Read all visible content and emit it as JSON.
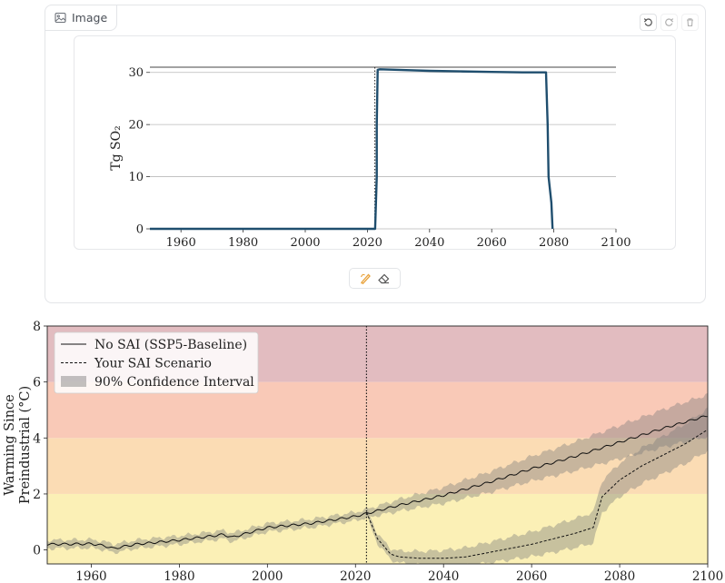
{
  "panel": {
    "label": "Image",
    "icons": {
      "image": "image-icon",
      "undo": "undo-icon",
      "redo": "redo-icon",
      "delete": "trash-icon"
    }
  },
  "pen_tools": {
    "icons": [
      "brush-icon",
      "eraser-icon"
    ],
    "brush_color": "#e8a23b"
  },
  "chart_data": [
    {
      "type": "line",
      "title": "",
      "xlabel": "",
      "ylabel": "Tg SO₂",
      "xlim": [
        1950,
        2100
      ],
      "ylim": [
        0,
        31
      ],
      "xticks": [
        1960,
        1980,
        2000,
        2020,
        2040,
        2060,
        2080,
        2100
      ],
      "yticks": [
        0,
        10,
        20,
        30
      ],
      "grid": "horizontal",
      "series": [
        {
          "color": "#1f4e6e",
          "x": [
            1950,
            2022.5,
            2023.0,
            2023.0,
            2023.3,
            2024,
            2030,
            2040,
            2050,
            2060,
            2070,
            2077.5,
            2078.0,
            2078.3,
            2079.2,
            2079.6
          ],
          "y": [
            0,
            0,
            10,
            20,
            30.5,
            30.6,
            30.5,
            30.3,
            30.2,
            30.1,
            30.0,
            30.0,
            20,
            10,
            5,
            0
          ]
        }
      ],
      "markers": [
        {
          "type": "vline",
          "x": 2022.4,
          "style": "dotted"
        }
      ]
    },
    {
      "type": "area",
      "title": "",
      "xlabel": "",
      "ylabel": "Warming Since\nPreindustrial (°C)",
      "ylabel_lines": [
        "Warming Since",
        "Preindustrial (°C)"
      ],
      "xlim": [
        1950,
        2100
      ],
      "ylim": [
        -0.5,
        8
      ],
      "xticks": [
        1960,
        1980,
        2000,
        2020,
        2040,
        2060,
        2080,
        2100
      ],
      "yticks": [
        0,
        2,
        4,
        6,
        8
      ],
      "legend": "top-left",
      "background_bands": [
        {
          "from": -0.5,
          "to": 2,
          "color": "#fbf0b6"
        },
        {
          "from": 2,
          "to": 4,
          "color": "#fbdcb4"
        },
        {
          "from": 4,
          "to": 6,
          "color": "#f9c9b7"
        },
        {
          "from": 6,
          "to": 8,
          "color": "#e2bcc0"
        }
      ],
      "series": [
        {
          "name": "No SAI (SSP5-Baseline)",
          "style": "solid",
          "color": "#111111",
          "x": [
            1950,
            1960,
            1963,
            1965,
            1970,
            1980,
            1990,
            1992,
            2000,
            2010,
            2020,
            2025,
            2030,
            2040,
            2050,
            2060,
            2070,
            2080,
            2090,
            2100
          ],
          "y": [
            0.2,
            0.22,
            0.15,
            0.05,
            0.2,
            0.35,
            0.55,
            0.45,
            0.8,
            0.95,
            1.2,
            1.4,
            1.6,
            1.95,
            2.4,
            2.9,
            3.35,
            3.85,
            4.35,
            4.8
          ]
        },
        {
          "name": "Your SAI Scenario",
          "style": "dashed",
          "color": "#111111",
          "x": [
            2022.5,
            2025,
            2028,
            2030,
            2035,
            2040,
            2045,
            2050,
            2055,
            2060,
            2065,
            2070,
            2074,
            2076,
            2080,
            2085,
            2090,
            2095,
            2100
          ],
          "y": [
            1.35,
            0.4,
            -0.15,
            -0.25,
            -0.3,
            -0.3,
            -0.25,
            -0.1,
            0.05,
            0.2,
            0.4,
            0.6,
            0.8,
            1.9,
            2.5,
            3.0,
            3.4,
            3.8,
            4.3
          ]
        },
        {
          "name": "90% Confidence Interval",
          "type": "band",
          "color": "#7a7a7a",
          "opacity": 0.4
        }
      ],
      "markers": [
        {
          "type": "vline",
          "x": 2022.5,
          "style": "dotted"
        }
      ]
    }
  ]
}
